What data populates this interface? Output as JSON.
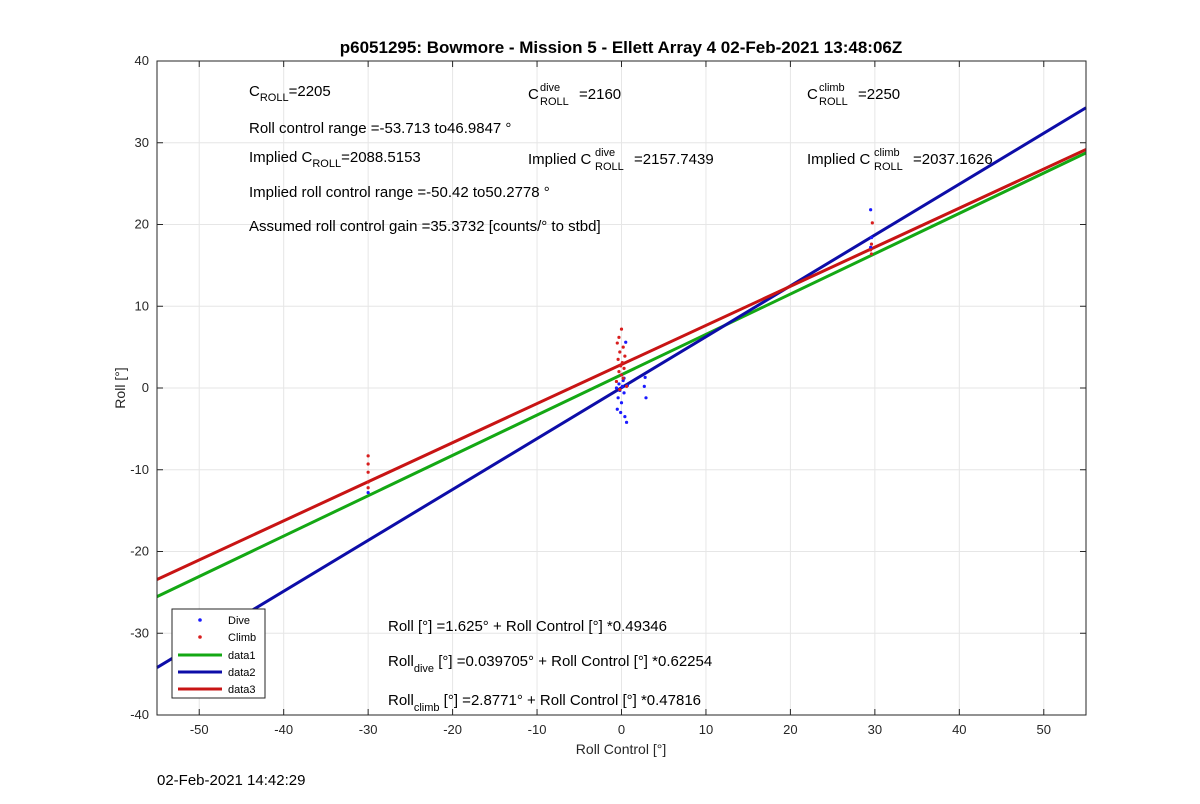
{
  "chart_data": {
    "type": "scatter",
    "title": "p6051295: Bowmore - Mission 5 - Ellett Array 4 02-Feb-2021 13:48:06Z",
    "xlabel": "Roll Control [°]",
    "ylabel": "Roll [°]",
    "xlim": [
      -55,
      55
    ],
    "ylim": [
      -40,
      40
    ],
    "xticks": [
      -50,
      -40,
      -30,
      -20,
      -10,
      0,
      10,
      20,
      30,
      40,
      50
    ],
    "yticks": [
      -40,
      -30,
      -20,
      -10,
      0,
      10,
      20,
      30,
      40
    ],
    "grid": true,
    "legend_position": "bottom-left",
    "legend": [
      "Dive",
      "Climb",
      "data1",
      "data2",
      "data3"
    ],
    "series": [
      {
        "name": "Dive",
        "kind": "points",
        "color": "#1a1aff",
        "points": [
          [
            0.0,
            1.6
          ],
          [
            0.2,
            0.9
          ],
          [
            -0.3,
            0.5
          ],
          [
            0.1,
            0.2
          ],
          [
            -0.2,
            -0.3
          ],
          [
            0.3,
            -0.6
          ],
          [
            -0.4,
            -1.2
          ],
          [
            0.0,
            -1.8
          ],
          [
            -0.5,
            -2.6
          ],
          [
            -0.1,
            -3.0
          ],
          [
            0.4,
            -3.5
          ],
          [
            0.6,
            -4.2
          ],
          [
            0.5,
            5.6
          ],
          [
            0.3,
            1.2
          ],
          [
            -0.6,
            0.0
          ],
          [
            0.7,
            0.3
          ],
          [
            2.8,
            1.3
          ],
          [
            2.7,
            0.2
          ],
          [
            2.9,
            -1.2
          ],
          [
            29.5,
            21.8
          ],
          [
            29.6,
            18.4
          ],
          [
            29.5,
            17.2
          ],
          [
            -30.0,
            -12.8
          ]
        ]
      },
      {
        "name": "Climb",
        "kind": "points",
        "color": "#d81e1e",
        "points": [
          [
            0.0,
            7.2
          ],
          [
            -0.3,
            6.2
          ],
          [
            -0.5,
            5.5
          ],
          [
            0.2,
            5.0
          ],
          [
            -0.2,
            4.4
          ],
          [
            0.4,
            3.9
          ],
          [
            -0.4,
            3.5
          ],
          [
            0.1,
            3.1
          ],
          [
            -0.1,
            2.7
          ],
          [
            0.3,
            2.4
          ],
          [
            -0.3,
            2.0
          ],
          [
            0.0,
            1.6
          ],
          [
            0.2,
            1.2
          ],
          [
            -0.6,
            0.8
          ],
          [
            0.6,
            0.2
          ],
          [
            -0.2,
            -0.2
          ],
          [
            29.7,
            20.2
          ],
          [
            29.6,
            17.6
          ],
          [
            29.5,
            16.9
          ],
          [
            29.6,
            16.4
          ],
          [
            -30.0,
            -8.3
          ],
          [
            -30.0,
            -9.3
          ],
          [
            -30.0,
            -10.3
          ],
          [
            -30.0,
            -11.5
          ],
          [
            -30.0,
            -12.2
          ]
        ]
      },
      {
        "name": "data1",
        "kind": "line",
        "color": "#14a814",
        "intercept": 1.625,
        "slope": 0.49346
      },
      {
        "name": "data2",
        "kind": "line",
        "color": "#0d0da8",
        "intercept": 0.039705,
        "slope": 0.62254
      },
      {
        "name": "data3",
        "kind": "line",
        "color": "#c81414",
        "intercept": 2.8771,
        "slope": 0.47816
      }
    ],
    "annotations": {
      "c_roll": {
        "main": "C",
        "sub": "ROLL",
        "value": "=2205"
      },
      "c_roll_dive": {
        "main": "C",
        "sup": "dive",
        "sub": "ROLL",
        "value": "=2160"
      },
      "c_roll_climb": {
        "main": "C",
        "sup": "climb",
        "sub": "ROLL",
        "value": "=2250"
      },
      "roll_range": "Roll control range =-53.713 to46.9847 °",
      "implied_c_roll": {
        "pre": "Implied C",
        "sub": "ROLL",
        "value": "=2088.5153"
      },
      "implied_c_roll_dive": {
        "pre": "Implied C",
        "sup": "dive",
        "sub": "ROLL",
        "value": "=2157.7439"
      },
      "implied_c_roll_climb": {
        "pre": "Implied C",
        "sup": "climb",
        "sub": "ROLL",
        "value": "=2037.1626"
      },
      "implied_range": "Implied roll control range =-50.42 to50.2778 °",
      "gain": "Assumed roll control gain =35.3732 [counts/° to stbd]",
      "eq_all": "Roll [°] =1.625° + Roll Control [°] *0.49346",
      "eq_dive": {
        "pre": "Roll",
        "sub": "dive",
        "post": " [°] =0.039705° + Roll Control [°] *0.62254"
      },
      "eq_climb": {
        "pre": "Roll",
        "sub": "climb",
        "post": " [°] =2.8771° + Roll Control [°] *0.47816"
      }
    }
  },
  "footer_timestamp": "02-Feb-2021 14:42:29"
}
